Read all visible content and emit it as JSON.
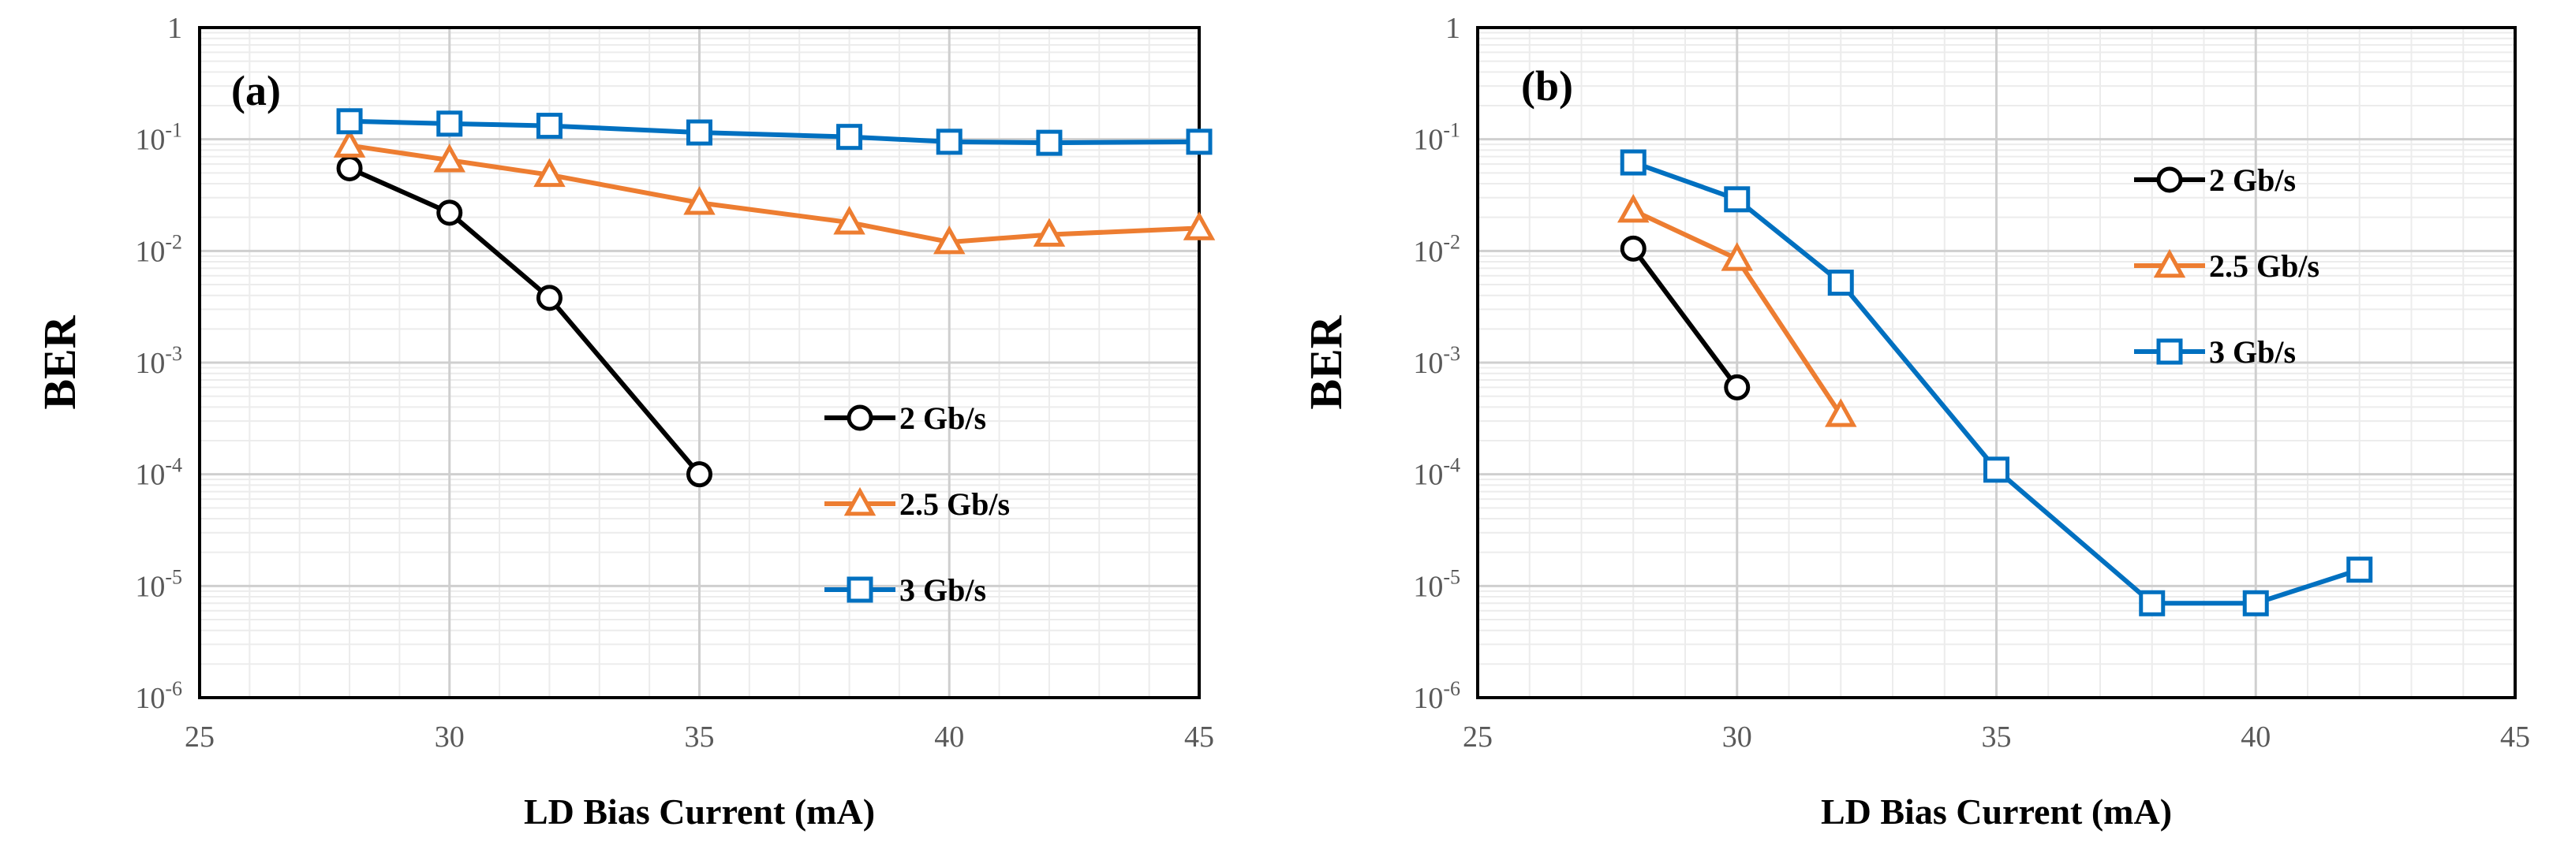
{
  "chart_data": [
    {
      "type": "line",
      "panel_label": "(a)",
      "xlabel": "LD Bias Current (mA)",
      "ylabel": "BER",
      "xlim": [
        25,
        45
      ],
      "xticks": [
        "25",
        "30",
        "35",
        "40",
        "45"
      ],
      "ylim": [
        1e-06,
        1
      ],
      "yscale": "log",
      "ytick_labels": [
        {
          "base": "10",
          "exp": "-6"
        },
        {
          "base": "10",
          "exp": "-5"
        },
        {
          "base": "10",
          "exp": "-4"
        },
        {
          "base": "10",
          "exp": "-3"
        },
        {
          "base": "10",
          "exp": "-2"
        },
        {
          "base": "10",
          "exp": "-1"
        },
        {
          "base": "1",
          "exp": ""
        }
      ],
      "grid": true,
      "legend_position": "lower-right",
      "series": [
        {
          "name": "2 Gb/s",
          "marker": "circle",
          "color": "#000000",
          "x": [
            28,
            30,
            32,
            35
          ],
          "y": [
            0.055,
            0.022,
            0.0038,
            0.0001
          ]
        },
        {
          "name": "2.5 Gb/s",
          "marker": "triangle",
          "color": "#ED7D31",
          "x": [
            28,
            30,
            32,
            35,
            38,
            40,
            42,
            45
          ],
          "y": [
            0.088,
            0.065,
            0.048,
            0.027,
            0.018,
            0.012,
            0.014,
            0.016
          ]
        },
        {
          "name": "3 Gb/s",
          "marker": "square",
          "color": "#0070C0",
          "x": [
            28,
            30,
            32,
            35,
            38,
            40,
            42,
            45
          ],
          "y": [
            0.145,
            0.138,
            0.132,
            0.115,
            0.105,
            0.095,
            0.093,
            0.095
          ]
        }
      ]
    },
    {
      "type": "line",
      "panel_label": "(b)",
      "xlabel": "LD Bias Current (mA)",
      "ylabel": "BER",
      "xlim": [
        25,
        45
      ],
      "xticks": [
        "25",
        "30",
        "35",
        "40",
        "45"
      ],
      "ylim": [
        1e-06,
        1
      ],
      "yscale": "log",
      "ytick_labels": [
        {
          "base": "10",
          "exp": "-6"
        },
        {
          "base": "10",
          "exp": "-5"
        },
        {
          "base": "10",
          "exp": "-4"
        },
        {
          "base": "10",
          "exp": "-3"
        },
        {
          "base": "10",
          "exp": "-2"
        },
        {
          "base": "10",
          "exp": "-1"
        },
        {
          "base": "1",
          "exp": ""
        }
      ],
      "grid": true,
      "legend_position": "upper-right",
      "series": [
        {
          "name": "2 Gb/s",
          "marker": "circle",
          "color": "#000000",
          "x": [
            28,
            30
          ],
          "y": [
            0.0105,
            0.0006
          ]
        },
        {
          "name": "2.5 Gb/s",
          "marker": "triangle",
          "color": "#ED7D31",
          "x": [
            28,
            30,
            32
          ],
          "y": [
            0.023,
            0.0085,
            0.00034
          ]
        },
        {
          "name": "3 Gb/s",
          "marker": "square",
          "color": "#0070C0",
          "x": [
            28,
            30,
            32,
            35,
            38,
            40,
            42
          ],
          "y": [
            0.062,
            0.029,
            0.0052,
            0.00011,
            7e-06,
            7e-06,
            1.4e-05
          ]
        }
      ]
    }
  ]
}
